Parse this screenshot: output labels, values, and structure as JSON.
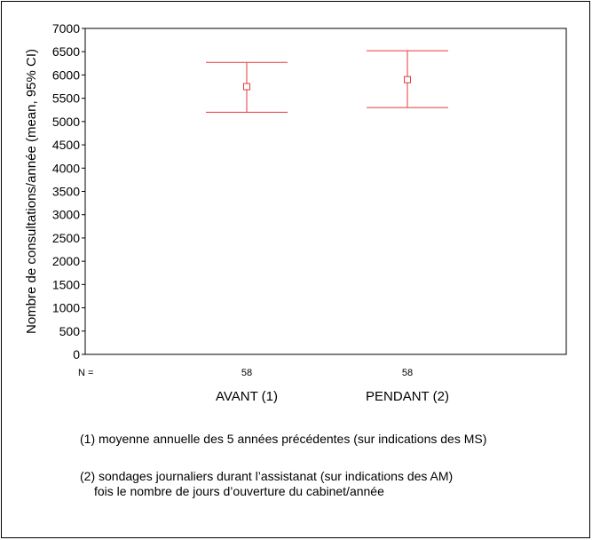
{
  "chart_data": {
    "type": "errorbar",
    "ylabel": "Nombre de consultations/année (mean, 95% CI)",
    "ylim": [
      0,
      7000
    ],
    "yticks": [
      0,
      500,
      1000,
      1500,
      2000,
      2500,
      3000,
      3500,
      4000,
      4500,
      5000,
      5500,
      6000,
      6500,
      7000
    ],
    "n_label": "N =",
    "categories": [
      "AVANT (1)",
      "PENDANT (2)"
    ],
    "n": [
      "58",
      "58"
    ],
    "mean": [
      5750,
      5900
    ],
    "ci_low": [
      5200,
      5300
    ],
    "ci_high": [
      6270,
      6520
    ],
    "color": "#e8383b",
    "grid": false
  },
  "notes": {
    "note1": "(1) moyenne annuelle des 5 années précédentes (sur indications des MS)",
    "note2_line1": "(2) sondages journaliers durant l’assistanat (sur indications des AM)",
    "note2_line2": "fois le nombre de jours d’ouverture du cabinet/année"
  }
}
